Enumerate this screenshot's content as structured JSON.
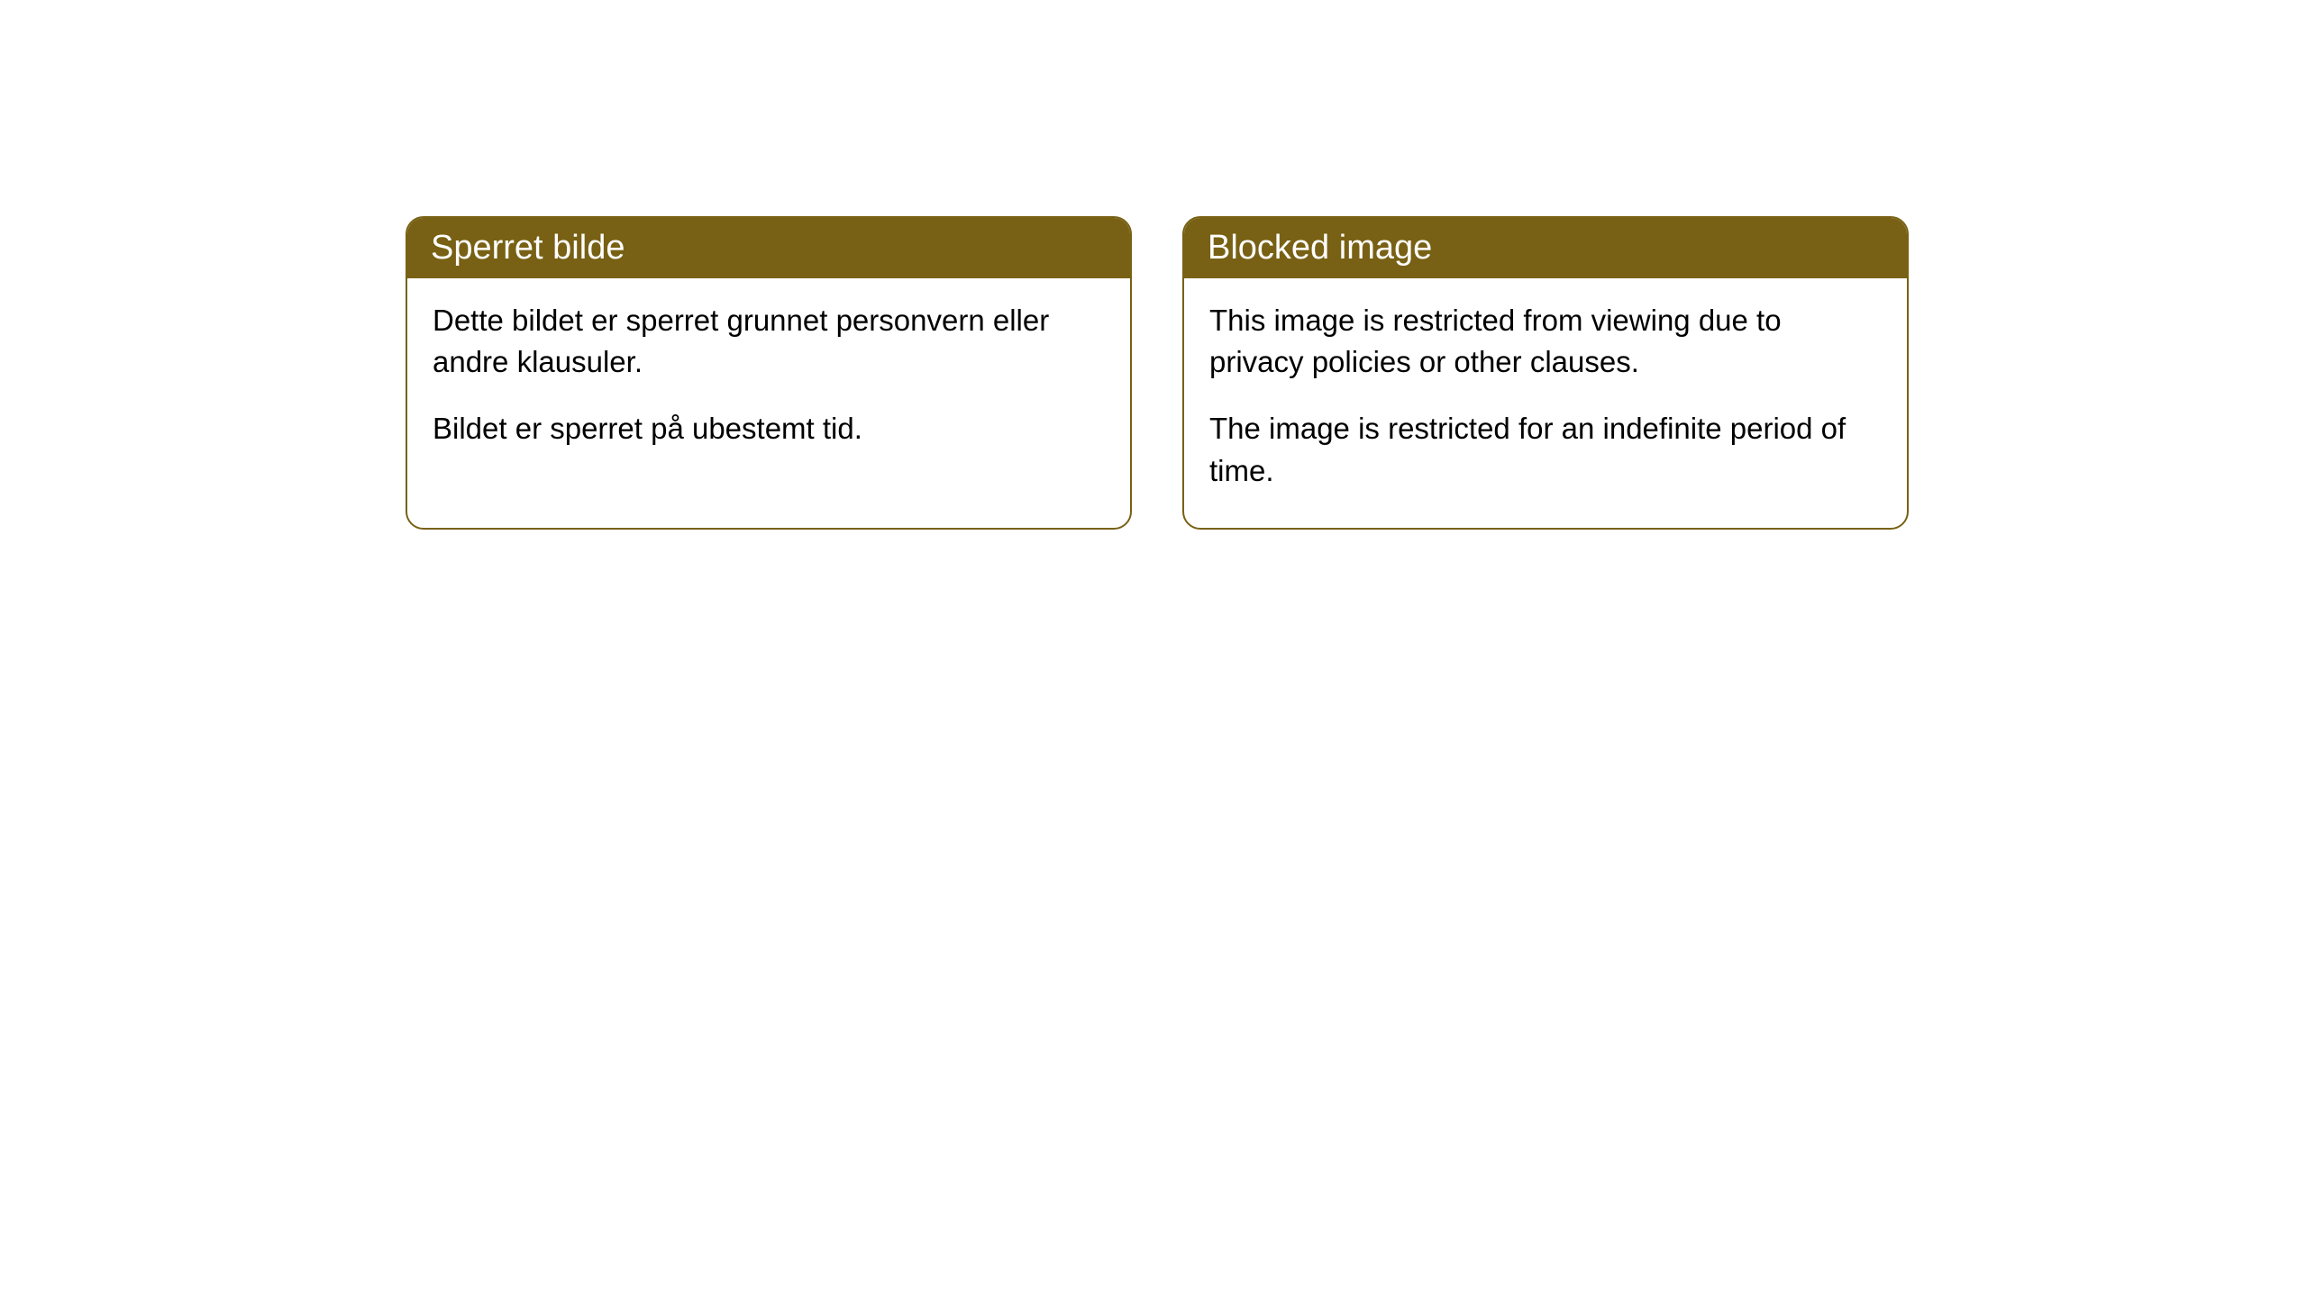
{
  "cards": [
    {
      "title": "Sperret bilde",
      "paragraph1": "Dette bildet er sperret grunnet personvern eller andre klausuler.",
      "paragraph2": "Bildet er sperret på ubestemt tid."
    },
    {
      "title": "Blocked image",
      "paragraph1": "This image is restricted from viewing due to privacy policies or other clauses.",
      "paragraph2": "The image is restricted for an indefinite period of time."
    }
  ],
  "styling": {
    "header_background_color": "#786114",
    "header_text_color": "#ffffff",
    "border_color": "#786114",
    "body_background_color": "#ffffff",
    "body_text_color": "#000000",
    "border_radius": 20,
    "header_fontsize": 38,
    "body_fontsize": 33
  }
}
